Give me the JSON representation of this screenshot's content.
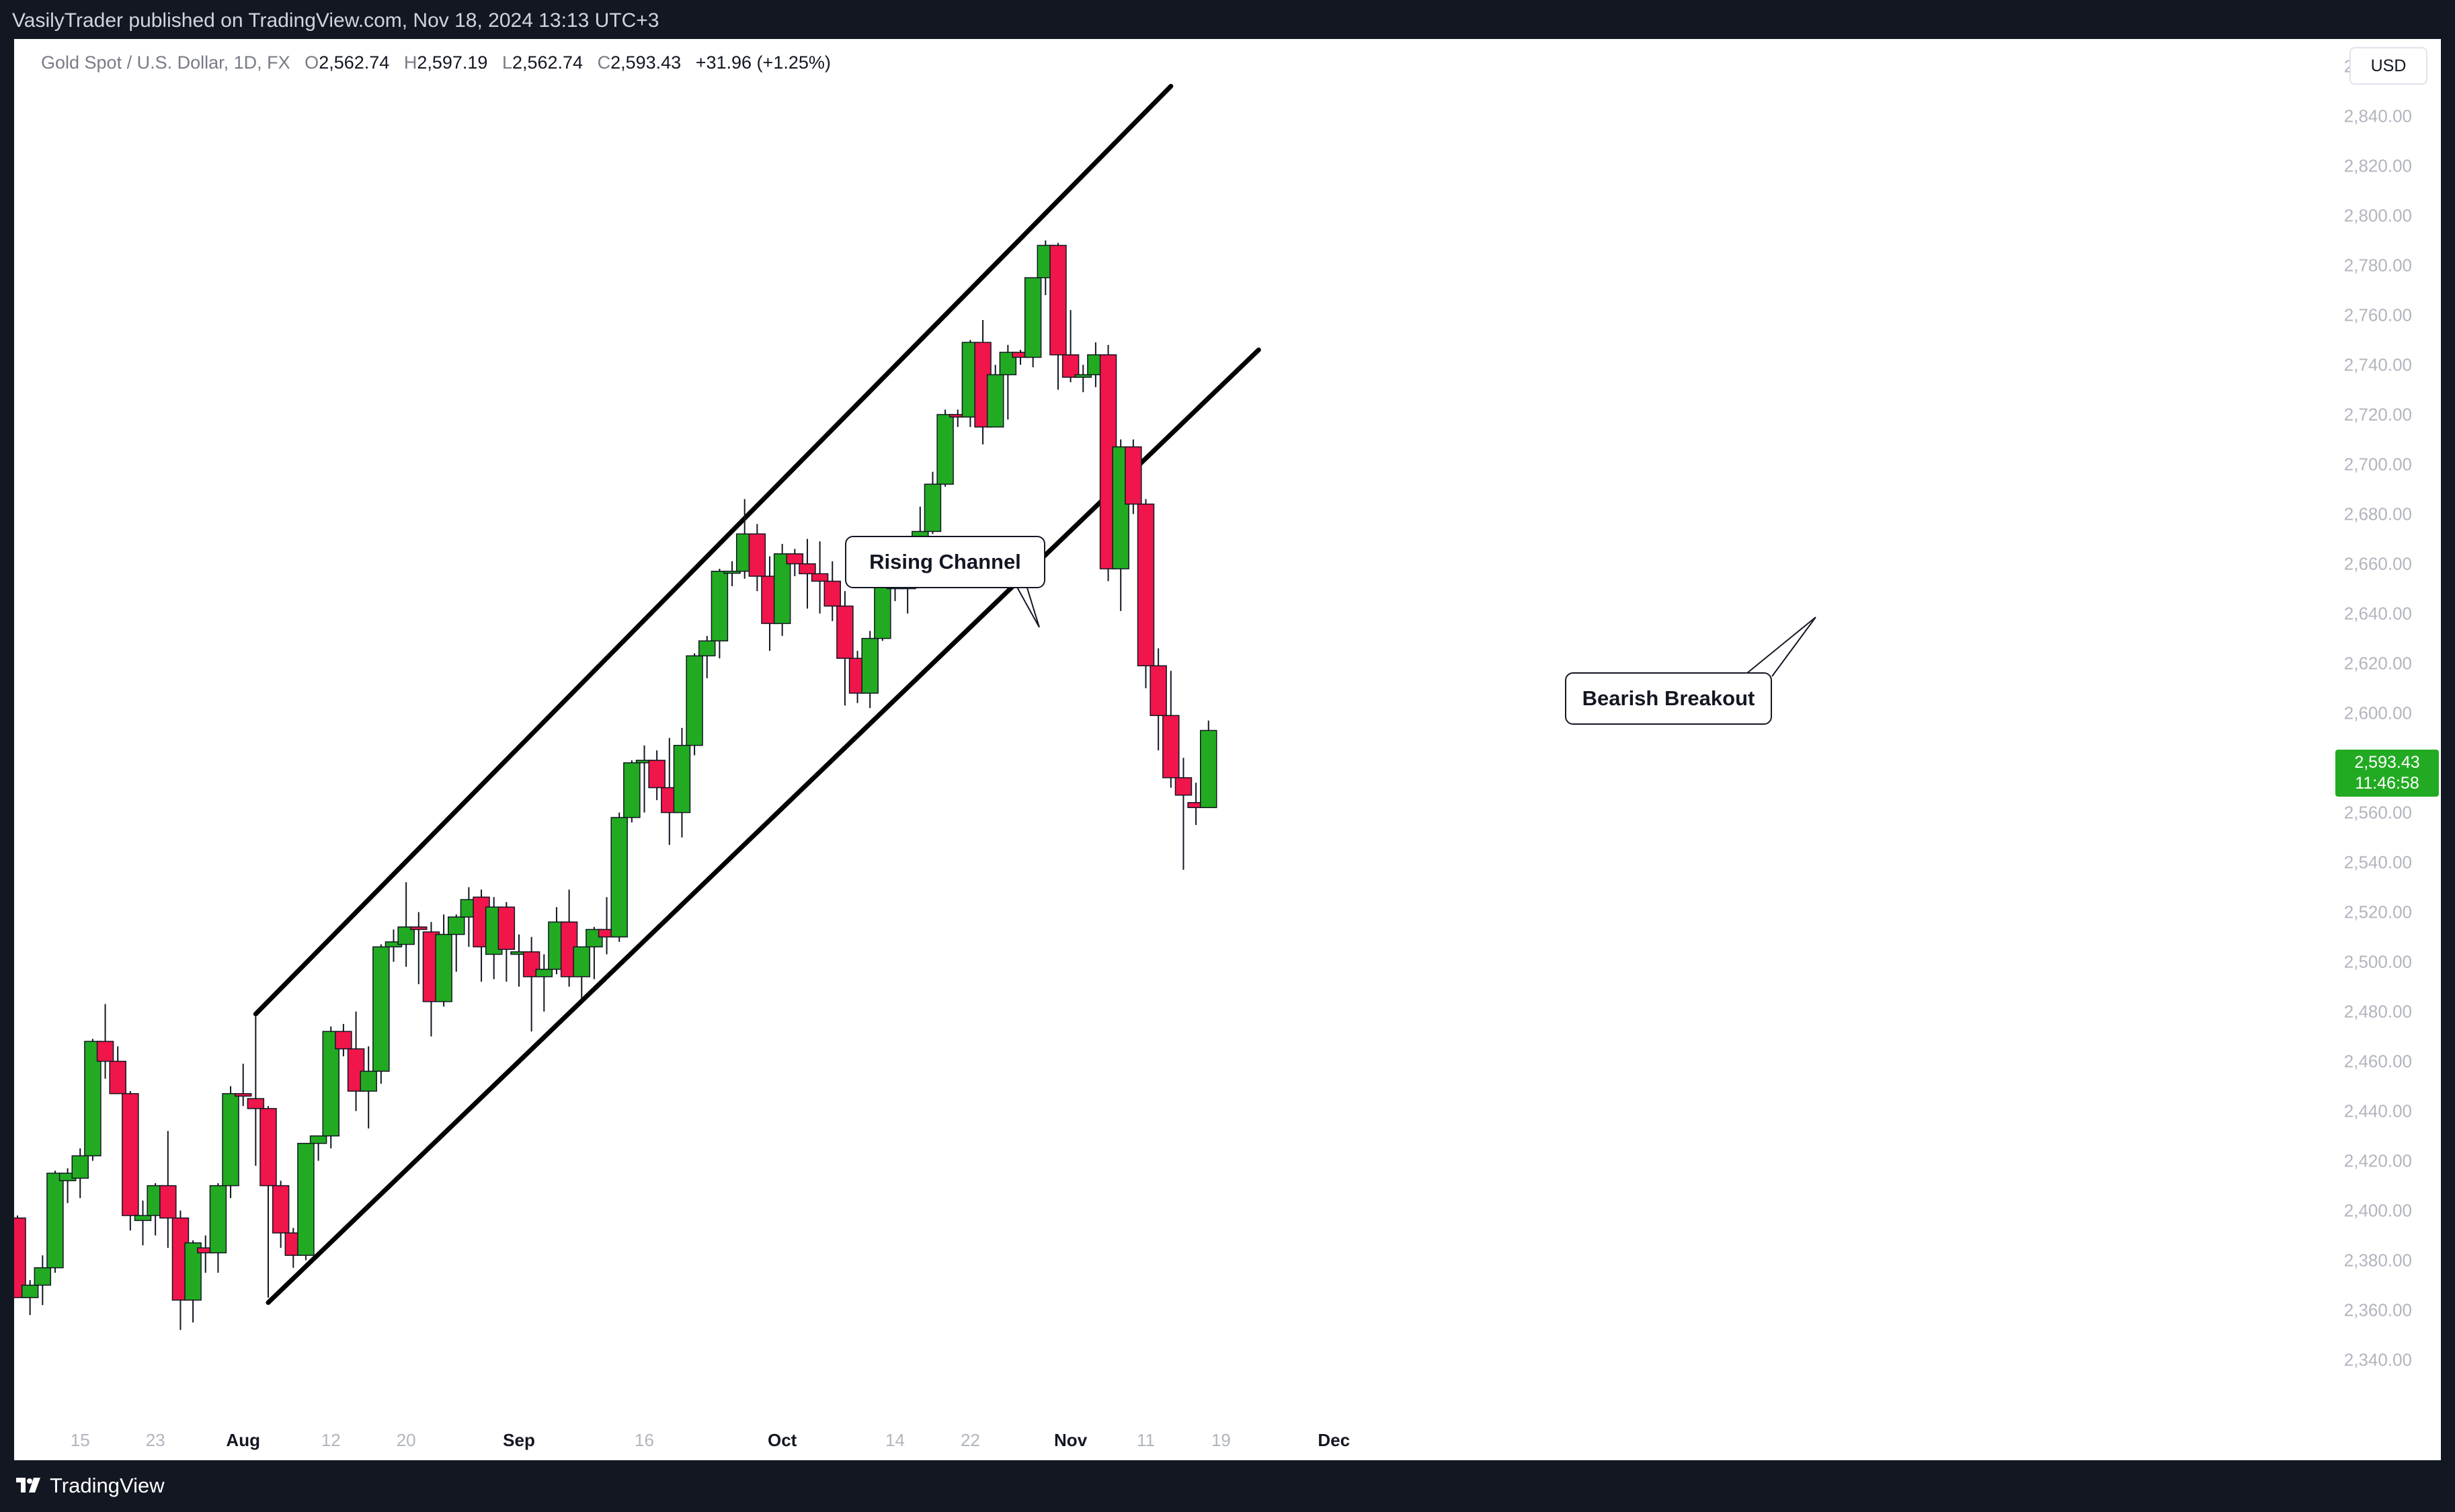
{
  "header": {
    "published_text": "VasilyTrader published on TradingView.com, Nov 18, 2024 13:13 UTC+3"
  },
  "legend": {
    "symbol": "Gold Spot / U.S. Dollar, 1D, FX",
    "open_label": "O",
    "open_value": "2,562.74",
    "high_label": "H",
    "high_value": "2,597.19",
    "low_label": "L",
    "low_value": "2,562.74",
    "close_label": "C",
    "close_value": "2,593.43",
    "change": "+31.96 (+1.25%)"
  },
  "currency": "USD",
  "last_price": {
    "price": "2,593.43",
    "countdown": "11:46:58"
  },
  "annotations": {
    "rising_channel": "Rising Channel",
    "bearish_breakout": "Bearish Breakout"
  },
  "footer": {
    "brand": "TradingView"
  },
  "colors": {
    "up": "#22ab22",
    "down": "#f0154a",
    "line": "#000000",
    "background": "#131722",
    "axis_text": "#b2b5be"
  },
  "chart_data": {
    "type": "candlestick",
    "symbol": "XAUUSD",
    "timeframe": "1D",
    "ylim": [
      2330,
      2870
    ],
    "y_ticks": [
      2340,
      2360,
      2380,
      2400,
      2420,
      2440,
      2460,
      2480,
      2500,
      2520,
      2540,
      2560,
      2580,
      2600,
      2620,
      2640,
      2660,
      2680,
      2700,
      2720,
      2740,
      2760,
      2780,
      2800,
      2820,
      2840,
      2860
    ],
    "y_tick_labels": [
      "2,340.00",
      "2,360.00",
      "2,380.00",
      "2,400.00",
      "2,420.00",
      "2,440.00",
      "2,460.00",
      "2,480.00",
      "2,500.00",
      "2,520.00",
      "2,540.00",
      "2,560.00",
      "2,580.00",
      "2,600.00",
      "2,620.00",
      "2,640.00",
      "2,660.00",
      "2,680.00",
      "2,700.00",
      "2,720.00",
      "2,740.00",
      "2,760.00",
      "2,780.00",
      "2,800.00",
      "2,820.00",
      "2,840.00",
      "2,860.00"
    ],
    "x_ticks": [
      {
        "label": "15",
        "index": 5,
        "bold": false
      },
      {
        "label": "23",
        "index": 11,
        "bold": false
      },
      {
        "label": "Aug",
        "index": 18,
        "bold": true
      },
      {
        "label": "12",
        "index": 25,
        "bold": false
      },
      {
        "label": "20",
        "index": 31,
        "bold": false
      },
      {
        "label": "Sep",
        "index": 40,
        "bold": true
      },
      {
        "label": "16",
        "index": 50,
        "bold": false
      },
      {
        "label": "Oct",
        "index": 61,
        "bold": true
      },
      {
        "label": "14",
        "index": 70,
        "bold": false
      },
      {
        "label": "22",
        "index": 76,
        "bold": false
      },
      {
        "label": "Nov",
        "index": 84,
        "bold": true
      },
      {
        "label": "11",
        "index": 90,
        "bold": false
      },
      {
        "label": "19",
        "index": 96,
        "bold": false
      },
      {
        "label": "Dec",
        "index": 105,
        "bold": true
      }
    ],
    "candles": [
      [
        2397,
        2398,
        2365,
        2365
      ],
      [
        2365,
        2372,
        2358,
        2370
      ],
      [
        2370,
        2382,
        2362,
        2377
      ],
      [
        2377,
        2416,
        2375,
        2415
      ],
      [
        2412,
        2417,
        2403,
        2415
      ],
      [
        2413,
        2425,
        2405,
        2422
      ],
      [
        2422,
        2469,
        2420,
        2468
      ],
      [
        2468,
        2483,
        2453,
        2460
      ],
      [
        2460,
        2466,
        2448,
        2447
      ],
      [
        2447,
        2448,
        2392,
        2398
      ],
      [
        2396,
        2404,
        2386,
        2398
      ],
      [
        2398,
        2411,
        2390,
        2410
      ],
      [
        2410,
        2432,
        2385,
        2397
      ],
      [
        2397,
        2400,
        2352,
        2364
      ],
      [
        2364,
        2388,
        2355,
        2387
      ],
      [
        2385,
        2390,
        2375,
        2383
      ],
      [
        2383,
        2411,
        2375,
        2410
      ],
      [
        2410,
        2450,
        2405,
        2447
      ],
      [
        2447,
        2459,
        2442,
        2446
      ],
      [
        2445,
        2478,
        2418,
        2441
      ],
      [
        2441,
        2442,
        2365,
        2410
      ],
      [
        2410,
        2412,
        2385,
        2391
      ],
      [
        2391,
        2393,
        2377,
        2382
      ],
      [
        2382,
        2427,
        2380,
        2427
      ],
      [
        2427,
        2430,
        2420,
        2430
      ],
      [
        2430,
        2474,
        2425,
        2472
      ],
      [
        2472,
        2475,
        2462,
        2465
      ],
      [
        2465,
        2480,
        2440,
        2448
      ],
      [
        2448,
        2466,
        2433,
        2456
      ],
      [
        2456,
        2507,
        2451,
        2506
      ],
      [
        2506,
        2513,
        2500,
        2508
      ],
      [
        2507,
        2532,
        2498,
        2514
      ],
      [
        2514,
        2520,
        2491,
        2513
      ],
      [
        2512,
        2516,
        2470,
        2484
      ],
      [
        2484,
        2519,
        2482,
        2511
      ],
      [
        2511,
        2519,
        2496,
        2518
      ],
      [
        2518,
        2530,
        2506,
        2525
      ],
      [
        2526,
        2529,
        2492,
        2506
      ],
      [
        2503,
        2526,
        2493,
        2522
      ],
      [
        2522,
        2524,
        2492,
        2505
      ],
      [
        2503,
        2511,
        2490,
        2504
      ],
      [
        2504,
        2510,
        2472,
        2494
      ],
      [
        2494,
        2503,
        2480,
        2497
      ],
      [
        2497,
        2522,
        2495,
        2516
      ],
      [
        2516,
        2529,
        2490,
        2494
      ],
      [
        2494,
        2505,
        2485,
        2506
      ],
      [
        2506,
        2514,
        2493,
        2513
      ],
      [
        2513,
        2526,
        2503,
        2510
      ],
      [
        2510,
        2560,
        2508,
        2558
      ],
      [
        2558,
        2581,
        2556,
        2580
      ],
      [
        2580,
        2587,
        2560,
        2581
      ],
      [
        2581,
        2585,
        2565,
        2570
      ],
      [
        2570,
        2590,
        2547,
        2560
      ],
      [
        2560,
        2594,
        2550,
        2587
      ],
      [
        2587,
        2624,
        2583,
        2623
      ],
      [
        2623,
        2631,
        2614,
        2629
      ],
      [
        2629,
        2658,
        2622,
        2657
      ],
      [
        2657,
        2661,
        2651,
        2657
      ],
      [
        2657,
        2686,
        2654,
        2672
      ],
      [
        2672,
        2676,
        2649,
        2655
      ],
      [
        2655,
        2663,
        2625,
        2636
      ],
      [
        2636,
        2668,
        2631,
        2664
      ],
      [
        2664,
        2666,
        2655,
        2660
      ],
      [
        2660,
        2670,
        2642,
        2656
      ],
      [
        2656,
        2669,
        2640,
        2653
      ],
      [
        2653,
        2661,
        2637,
        2643
      ],
      [
        2643,
        2649,
        2603,
        2622
      ],
      [
        2622,
        2625,
        2604,
        2608
      ],
      [
        2608,
        2633,
        2602,
        2630
      ],
      [
        2630,
        2660,
        2629,
        2657
      ],
      [
        2657,
        2662,
        2645,
        2650
      ],
      [
        2650,
        2665,
        2640,
        2663
      ],
      [
        2663,
        2683,
        2662,
        2673
      ],
      [
        2673,
        2697,
        2672,
        2692
      ],
      [
        2692,
        2722,
        2691,
        2720
      ],
      [
        2720,
        2722,
        2715,
        2719
      ],
      [
        2719,
        2750,
        2715,
        2749
      ],
      [
        2749,
        2758,
        2708,
        2715
      ],
      [
        2715,
        2740,
        2715,
        2736
      ],
      [
        2736,
        2748,
        2718,
        2745
      ],
      [
        2745,
        2746,
        2740,
        2743
      ],
      [
        2743,
        2775,
        2739,
        2775
      ],
      [
        2775,
        2790,
        2768,
        2788
      ],
      [
        2788,
        2789,
        2730,
        2744
      ],
      [
        2744,
        2762,
        2733,
        2735
      ],
      [
        2735,
        2740,
        2729,
        2736
      ],
      [
        2736,
        2749,
        2731,
        2744
      ],
      [
        2744,
        2748,
        2653,
        2658
      ],
      [
        2658,
        2710,
        2641,
        2707
      ],
      [
        2707,
        2710,
        2680,
        2684
      ],
      [
        2684,
        2686,
        2610,
        2619
      ],
      [
        2619,
        2626,
        2585,
        2599
      ],
      [
        2599,
        2617,
        2570,
        2574
      ],
      [
        2574,
        2582,
        2537,
        2567
      ],
      [
        2564,
        2572,
        2555,
        2562
      ],
      [
        2562,
        2597,
        2562,
        2593
      ]
    ],
    "lines": [
      {
        "name": "Rising Channel",
        "from": {
          "index": 19,
          "price": 2479
        },
        "to": {
          "index": 92,
          "price": 2852
        }
      },
      {
        "from": {
          "index": 20,
          "price": 2363
        },
        "to": {
          "index": 99,
          "price": 2746
        }
      }
    ]
  }
}
